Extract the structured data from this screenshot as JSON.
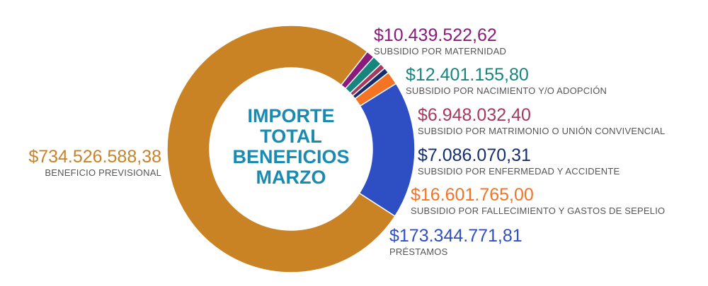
{
  "chart_data": {
    "type": "pie",
    "center_title": [
      "IMPORTE",
      "TOTAL",
      "BENEFICIOS",
      "MARZO"
    ],
    "slices": [
      {
        "name": "BENEFICIO PREVISIONAL",
        "label": "$734.526.588,38",
        "value": 734526588.38,
        "color": "#c98224"
      },
      {
        "name": "SUBSIDIO POR MATERNIDAD",
        "label": "$10.439.522,62",
        "value": 10439522.62,
        "color": "#8a1a7c"
      },
      {
        "name": "SUBSIDIO POR NACIMIENTO Y/O ADOPCIÓN",
        "label": "$12.401.155,80",
        "value": 12401155.8,
        "color": "#17857e"
      },
      {
        "name": "SUBSIDIO POR MATRIMONIO O UNIÓN CONVIVENCIAL",
        "label": "$6.948.032,40",
        "value": 6948032.4,
        "color": "#a53a5c"
      },
      {
        "name": "SUBSIDIO POR ENFERMEDAD Y ACCIDENTE",
        "label": "$7.086.070,31",
        "value": 7086070.31,
        "color": "#152f6e"
      },
      {
        "name": "SUBSIDIO POR FALLECIMIENTO Y GASTOS DE SEPELIO",
        "label": "$16.601.765,00",
        "value": 16601765.0,
        "color": "#f57324"
      },
      {
        "name": "PRÉSTAMOS",
        "label": "$173.344.771,81",
        "value": 173344771.81,
        "color": "#2e4fc4"
      }
    ]
  }
}
